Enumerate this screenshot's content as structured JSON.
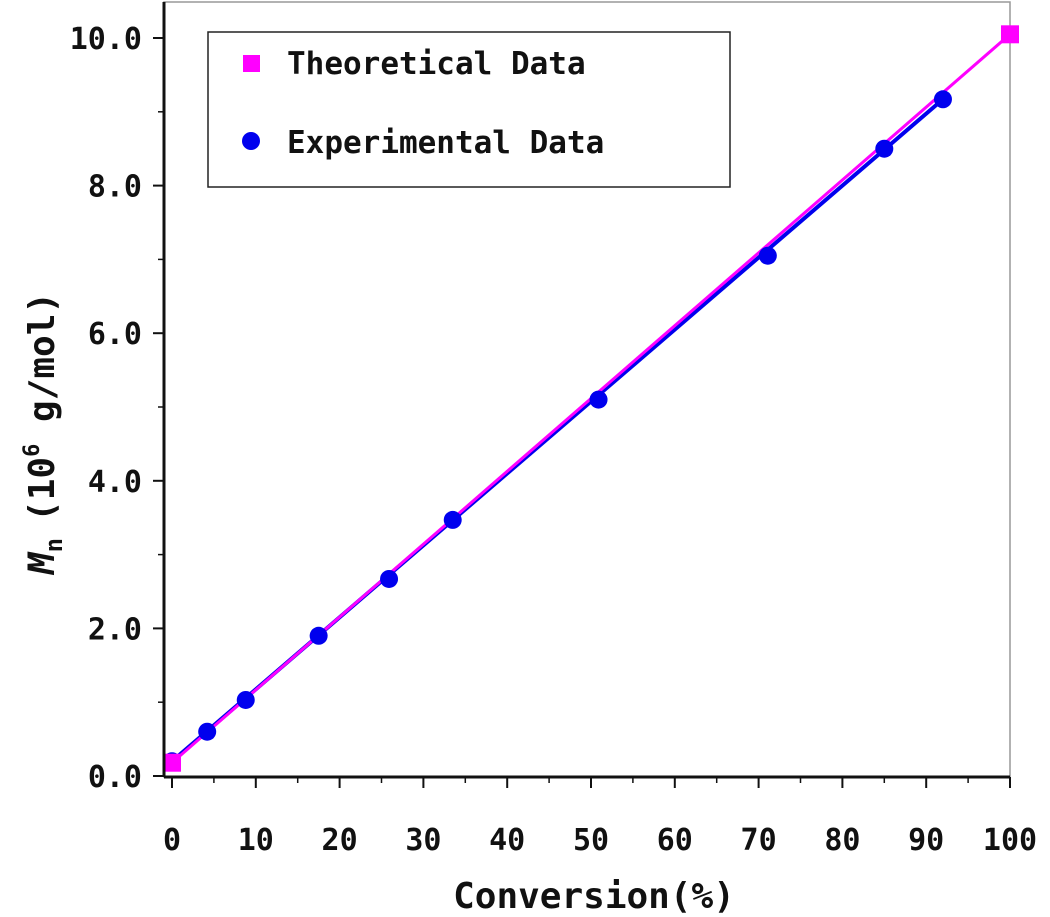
{
  "chart_data": {
    "type": "line",
    "xlabel": "Conversion(%)",
    "ylabel": {
      "symbol": "M",
      "subscript": "n",
      "open": "(10",
      "exponent": "6",
      "unit": " g/mol)"
    },
    "xlim": [
      0,
      100
    ],
    "ylim": [
      0.0,
      10.0
    ],
    "x_ticks": [
      0,
      10,
      20,
      30,
      40,
      50,
      60,
      70,
      80,
      90,
      100
    ],
    "x_tick_labels": [
      "0",
      "10",
      "20",
      "30",
      "40",
      "50",
      "60",
      "70",
      "80",
      "90",
      "100"
    ],
    "y_ticks": [
      0,
      2,
      4,
      6,
      8,
      10
    ],
    "y_tick_labels": [
      "0.0",
      "2.0",
      "4.0",
      "6.0",
      "8.0",
      "10.0"
    ],
    "grid": false,
    "legend_position": "top-left",
    "series": [
      {
        "name": "Theoretical Data",
        "color": "#ff00ff",
        "marker": "square",
        "x": [
          0,
          100
        ],
        "y": [
          0.18,
          10.05
        ]
      },
      {
        "name": "Experimental Data",
        "color": "#0000ee",
        "marker": "circle",
        "x": [
          0,
          4.2,
          8.8,
          17.5,
          25.9,
          33.5,
          50.9,
          71.1,
          85.0,
          92.0
        ],
        "y": [
          0.2,
          0.6,
          1.03,
          1.9,
          2.67,
          3.47,
          5.1,
          7.05,
          8.5,
          9.17
        ]
      }
    ]
  }
}
